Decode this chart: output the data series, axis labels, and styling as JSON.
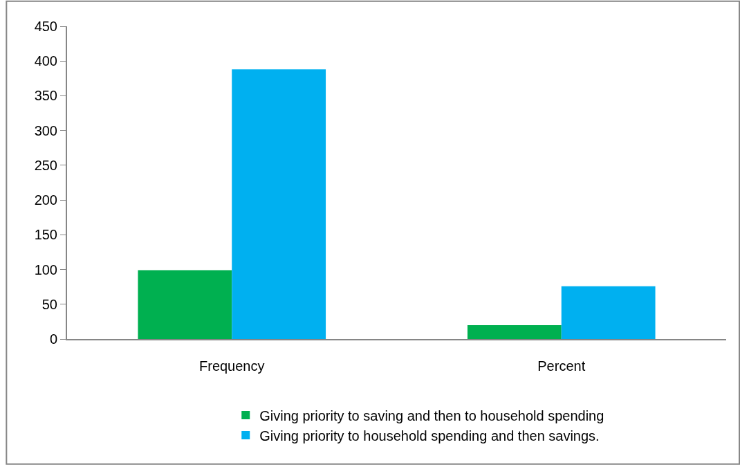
{
  "chart_data": {
    "type": "bar",
    "categories": [
      "Frequency",
      "Percent"
    ],
    "series": [
      {
        "name": "Giving priority to saving and then to household spending",
        "color": "#00b050",
        "values": [
          99,
          20
        ]
      },
      {
        "name": "Giving priority to household spending and then savings.",
        "color": "#00b0f0",
        "values": [
          388,
          76
        ]
      }
    ],
    "ylim": [
      0,
      450
    ],
    "yticks": [
      0,
      50,
      100,
      150,
      200,
      250,
      300,
      350,
      400,
      450
    ],
    "legend": "bottom"
  }
}
